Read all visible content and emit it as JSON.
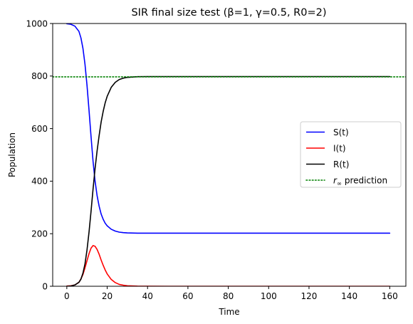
{
  "chart_data": {
    "type": "line",
    "title": "SIR final size test (β=1, γ=0.5, R0=2)",
    "xlabel": "Time",
    "ylabel": "Population",
    "xlim": [
      -7,
      168
    ],
    "ylim": [
      0,
      1000
    ],
    "xticks": [
      0,
      20,
      40,
      60,
      80,
      100,
      120,
      140,
      160
    ],
    "yticks": [
      0,
      200,
      400,
      600,
      800,
      1000
    ],
    "grid": false,
    "legend_position": "center-right",
    "series": [
      {
        "name": "S(t)",
        "color": "#0000ff",
        "style": "solid",
        "x": [
          0,
          2,
          4,
          6,
          7,
          8,
          9,
          10,
          11,
          12,
          13,
          14,
          15,
          16,
          17,
          18,
          19,
          20,
          22,
          24,
          26,
          28,
          30,
          35,
          40,
          50,
          60,
          80,
          100,
          120,
          140,
          160
        ],
        "y": [
          999,
          997,
          990,
          970,
          945,
          905,
          845,
          765,
          670,
          570,
          475,
          400,
          345,
          305,
          275,
          255,
          240,
          230,
          217,
          210,
          206,
          204,
          203,
          202,
          202,
          202,
          202,
          202,
          202,
          202,
          202,
          202
        ]
      },
      {
        "name": "I(t)",
        "color": "#ff0000",
        "style": "solid",
        "x": [
          0,
          2,
          4,
          6,
          7,
          8,
          9,
          10,
          11,
          12,
          13,
          14,
          15,
          16,
          17,
          18,
          19,
          20,
          22,
          24,
          26,
          28,
          30,
          35,
          40,
          50,
          60,
          80,
          100,
          120,
          140,
          160
        ],
        "y": [
          1,
          2,
          5,
          15,
          28,
          45,
          70,
          97,
          124,
          145,
          155,
          152,
          140,
          122,
          100,
          80,
          62,
          47,
          26,
          14,
          7,
          4,
          2,
          0.5,
          0.1,
          0,
          0,
          0,
          0,
          0,
          0,
          0
        ]
      },
      {
        "name": "R(t)",
        "color": "#000000",
        "style": "solid",
        "x": [
          0,
          2,
          4,
          6,
          7,
          8,
          9,
          10,
          11,
          12,
          13,
          14,
          15,
          16,
          17,
          18,
          19,
          20,
          22,
          24,
          26,
          28,
          30,
          35,
          40,
          50,
          60,
          80,
          100,
          120,
          140,
          160
        ],
        "y": [
          0,
          1,
          5,
          15,
          27,
          50,
          85,
          138,
          206,
          285,
          370,
          448,
          515,
          573,
          625,
          665,
          698,
          723,
          757,
          776,
          787,
          792,
          795,
          797.5,
          797.9,
          798,
          798,
          798,
          798,
          798,
          798,
          798
        ]
      },
      {
        "name_prefix": "r",
        "name_subscript": "∞",
        "name_suffix": " prediction",
        "color": "#008000",
        "style": "dotted",
        "hline": 797
      }
    ]
  }
}
